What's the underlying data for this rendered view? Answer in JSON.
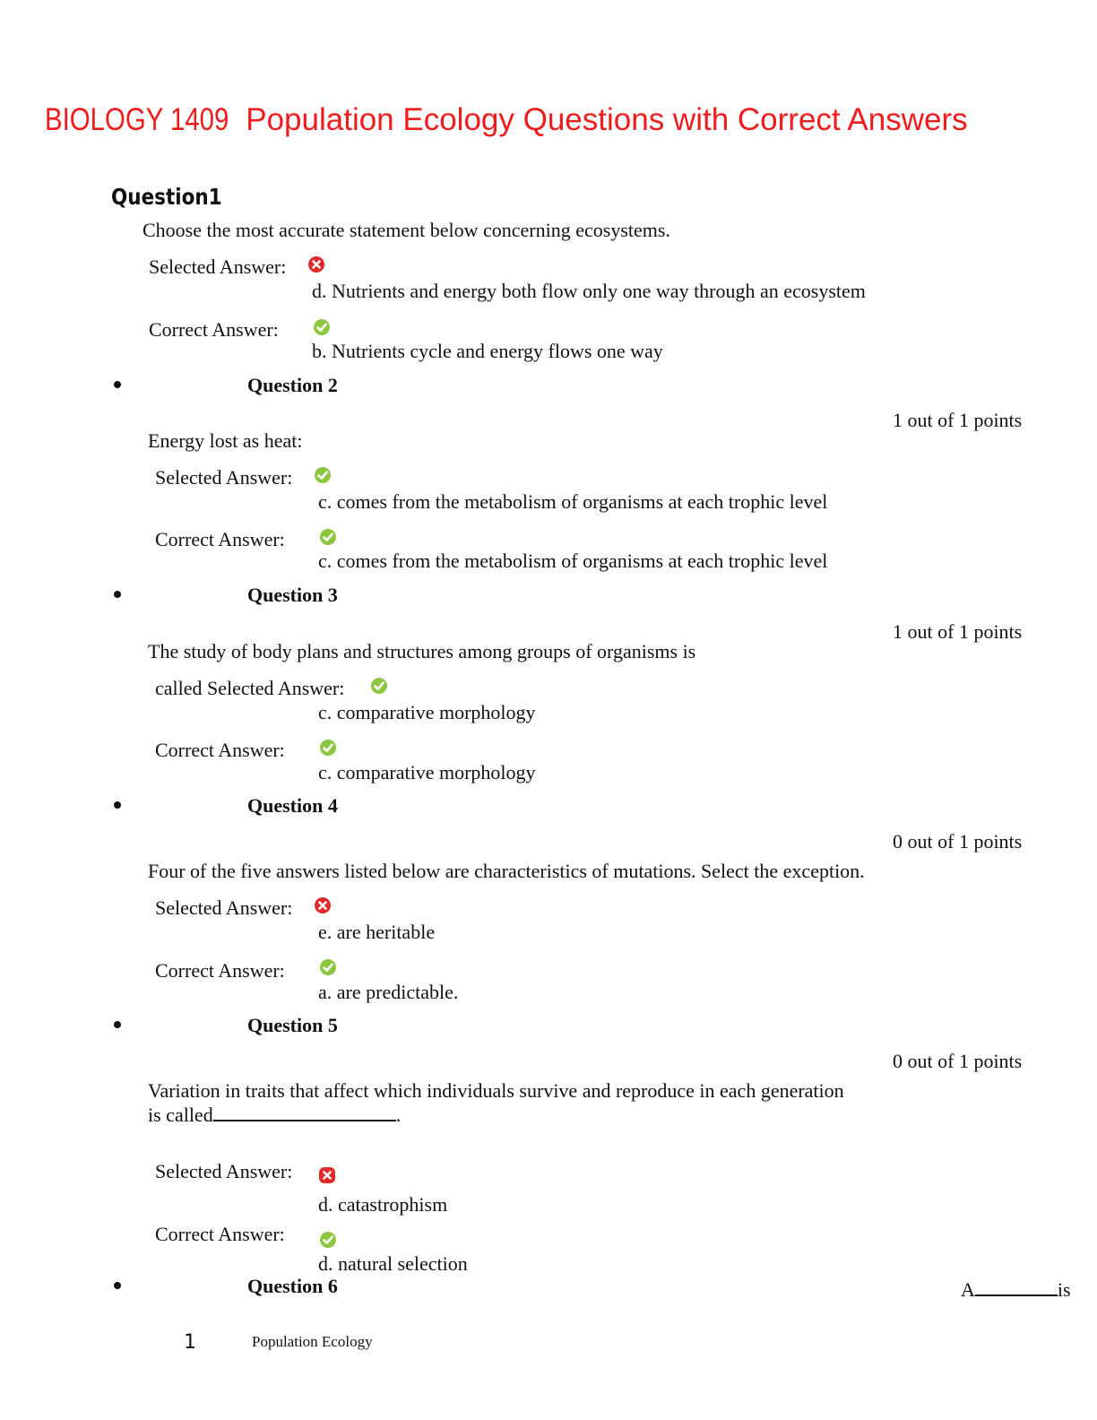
{
  "document": {
    "title_prefix": "BIOLOGY 1409",
    "title_rest": " Population Ecology Questions with Correct Answers"
  },
  "labels": {
    "selected": "Selected Answer:",
    "correct": "Correct Answer:",
    "called_selected": "called Selected Answer:"
  },
  "questions": [
    {
      "heading": "Question1",
      "prompt": "Choose the most accurate statement below concerning ecosystems.",
      "selected_answer": "d. Nutrients and energy both flow only one way through an ecosystem",
      "selected_icon": "incorrect-icon",
      "correct_answer": "b. Nutrients cycle and energy flows one way",
      "correct_icon": "correct-icon"
    },
    {
      "heading": "Question 2",
      "points": "1 out of 1 points",
      "prompt": "Energy lost as heat:",
      "selected_answer": "c. comes from the metabolism of organisms at each trophic level",
      "selected_icon": "correct-icon",
      "correct_answer": "c. comes from the metabolism of organisms at each trophic level",
      "correct_icon": "correct-icon"
    },
    {
      "heading": "Question 3",
      "points": "1 out of 1 points",
      "prompt": "The study of body plans and structures among groups of organisms is",
      "selected_answer": "c. comparative morphology",
      "selected_icon": "correct-icon",
      "correct_answer": "c. comparative morphology",
      "correct_icon": "correct-icon"
    },
    {
      "heading": "Question 4",
      "points": "0 out of 1 points",
      "prompt": "Four of the five answers listed below are characteristics of mutations. Select the exception.",
      "selected_answer": "e. are heritable",
      "selected_icon": "incorrect-icon",
      "correct_answer": "a. are predictable.",
      "correct_icon": "correct-icon"
    },
    {
      "heading": "Question 5",
      "points": "0 out of 1 points",
      "prompt_line1": "Variation in traits that affect which individuals survive and reproduce in each generation",
      "prompt_line2_start": "is called",
      "prompt_line2_end": ".",
      "selected_answer": "d. catastrophism",
      "selected_icon": "incorrect-icon",
      "correct_answer": "d. natural selection",
      "correct_icon": "correct-icon"
    },
    {
      "heading": "Question 6",
      "fragment_start": "A",
      "fragment_end": "is"
    }
  ],
  "footer": {
    "page_number": "1",
    "running_title": "Population Ecology"
  },
  "colors": {
    "title": "#ee1c1c",
    "correct_icon": "#8dc63f",
    "incorrect_icon": "#e02a2a"
  }
}
